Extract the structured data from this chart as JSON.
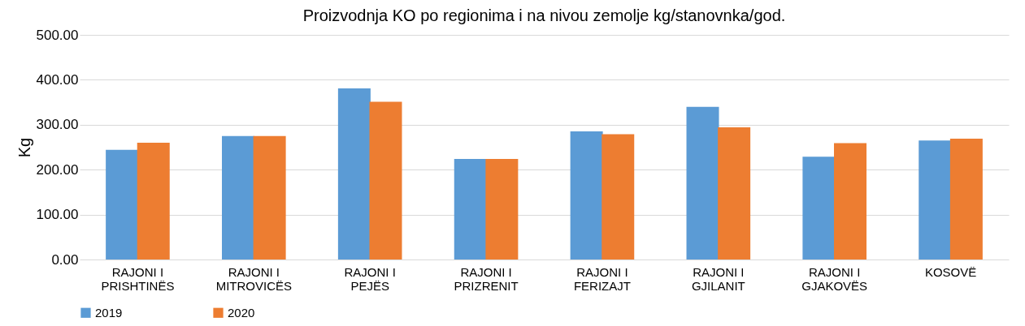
{
  "chart_data": {
    "type": "bar",
    "title": "Proizvodnja KO po regionima i na nivou zemolje kg/stanovnka/god.",
    "ylabel": "Kg",
    "categories": [
      "RAJONI I\nPRISHTINËS",
      "RAJONI I\nMITROVICËS",
      "RAJONI I\nPEJËS",
      "RAJONI I\nPRIZRENIT",
      "RAJONI I\nFERIZAJT",
      "RAJONI I\nGJILANIT",
      "RAJONI I\nGJAKOVËS",
      "KOSOVË"
    ],
    "series": [
      {
        "name": "2019",
        "color": "#5b9bd5",
        "values": [
          244,
          275,
          381,
          224,
          285,
          340,
          229,
          265
        ]
      },
      {
        "name": "2020",
        "color": "#ed7d31",
        "values": [
          260,
          275,
          351,
          224,
          279,
          294,
          259,
          269
        ]
      }
    ],
    "ylim": [
      0,
      500
    ],
    "yticks": [
      {
        "value": 0,
        "label": "0.00"
      },
      {
        "value": 100,
        "label": "100.00"
      },
      {
        "value": 200,
        "label": "200.00"
      },
      {
        "value": 300,
        "label": "300.00"
      },
      {
        "value": 400,
        "label": "400.00"
      },
      {
        "value": 500,
        "label": "500.00"
      }
    ],
    "grid": "y",
    "legend": "bottom"
  }
}
